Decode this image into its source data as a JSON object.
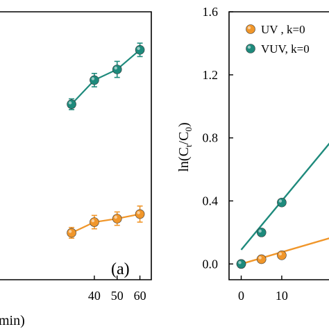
{
  "colors": {
    "uv": "#f0962a",
    "vuv": "#1e8a7c",
    "axis": "#000000"
  },
  "chart_data": [
    {
      "type": "line",
      "panel_label": "(a)",
      "xlabel_visible": "min)",
      "ylabel": "",
      "xlim": [
        0,
        65
      ],
      "ylim": [
        0,
        1
      ],
      "x_ticks": [
        40,
        50,
        60
      ],
      "x_tick_labels": [
        "40",
        "50",
        "60"
      ],
      "error_bars": true,
      "series": [
        {
          "key": "uv",
          "x": [
            30,
            40,
            50,
            60
          ],
          "y": [
            0.175,
            0.215,
            0.228,
            0.245
          ],
          "err": [
            0.02,
            0.025,
            0.025,
            0.03
          ]
        },
        {
          "key": "vuv",
          "x": [
            30,
            40,
            50,
            60
          ],
          "y": [
            0.655,
            0.745,
            0.785,
            0.858
          ],
          "err": [
            0.02,
            0.025,
            0.03,
            0.025
          ]
        }
      ]
    },
    {
      "type": "scatter",
      "xlabel": "",
      "ylabel": "ln(Ct/C0)",
      "xlim": [
        -3,
        22
      ],
      "ylim": [
        -0.1,
        1.6
      ],
      "y_ticks": [
        0.0,
        0.4,
        0.8,
        1.2,
        1.6
      ],
      "y_tick_labels": [
        "0.0",
        "0.4",
        "0.8",
        "1.2",
        "1.6"
      ],
      "x_ticks": [
        0,
        10
      ],
      "x_tick_labels": [
        "0",
        "10"
      ],
      "legend_position": "top-right",
      "series": [
        {
          "key": "uv",
          "legend_label": "UV   , k=0",
          "x": [
            0,
            5,
            10
          ],
          "y": [
            0.0,
            0.03,
            0.055
          ],
          "fit": {
            "slope": 0.0075,
            "intercept": 0.0
          }
        },
        {
          "key": "vuv",
          "legend_label": "VUV, k=0",
          "x": [
            0,
            5,
            10
          ],
          "y": [
            0.0,
            0.2,
            0.39
          ],
          "fit": {
            "slope": 0.031,
            "intercept": 0.09
          }
        }
      ]
    }
  ]
}
